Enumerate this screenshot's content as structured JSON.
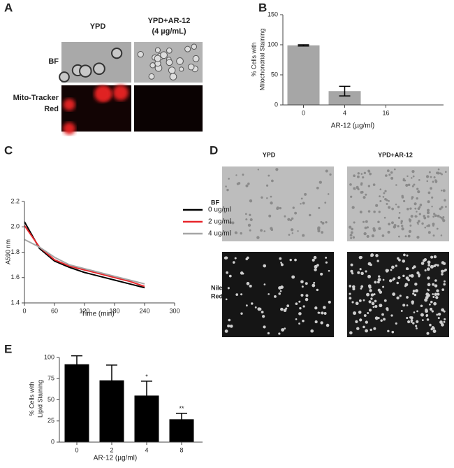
{
  "panel_labels": [
    "A",
    "B",
    "C",
    "D",
    "E"
  ],
  "images": {
    "A": {
      "columns": [
        [
          "YPD"
        ],
        [
          "YPD+AR-12",
          "(4 µg/mL)"
        ]
      ],
      "rows": [
        [
          "BF"
        ],
        [
          "Mito-Tracker",
          "Red"
        ]
      ]
    },
    "D": {
      "columns": [
        [
          "YPD"
        ],
        [
          "YPD+AR-12"
        ]
      ],
      "rows": [
        [
          "BF"
        ],
        [
          "Nile",
          "Red"
        ]
      ]
    }
  },
  "chart_data": [
    {
      "type": "bar",
      "ylabel": [
        "% Cells with",
        "Mitochondrial Staining"
      ],
      "xlabel": "AR-12 (µg/ml)",
      "categories": [
        "0",
        "4",
        "16"
      ],
      "values": [
        99,
        23,
        0
      ],
      "errors": [
        1,
        8,
        null
      ],
      "color": "#a6a6a6",
      "ylim": [
        0,
        150
      ],
      "yticks": [
        0,
        50,
        100,
        150
      ]
    },
    {
      "type": "line",
      "ylabel": "A590 nm",
      "xlabel": "Time (min)",
      "x": [
        0,
        30,
        60,
        90,
        120,
        150,
        180,
        210,
        240
      ],
      "series": [
        {
          "name": "0 ug/ml",
          "color": "#000000",
          "values": [
            2.04,
            1.83,
            1.73,
            1.68,
            1.64,
            1.61,
            1.58,
            1.55,
            1.52
          ]
        },
        {
          "name": "2 ug/ml",
          "color": "#e8262b",
          "values": [
            2.01,
            1.84,
            1.74,
            1.69,
            1.66,
            1.63,
            1.6,
            1.57,
            1.53
          ]
        },
        {
          "name": "4 ug/ml",
          "color": "#a6a6a6",
          "values": [
            1.9,
            1.84,
            1.76,
            1.7,
            1.67,
            1.64,
            1.61,
            1.58,
            1.55
          ]
        }
      ],
      "xlim": [
        0,
        300
      ],
      "xticks": [
        0,
        60,
        120,
        180,
        240,
        300
      ],
      "ylim": [
        1.4,
        2.2
      ],
      "yticks": [
        1.4,
        1.6,
        1.8,
        {
          "value": 2,
          "label": "2.0"
        },
        2.2
      ]
    },
    {
      "type": "bar",
      "ylabel": [
        "% Cells with",
        "Lipid Staining"
      ],
      "xlabel": "AR-12 (µg/ml)",
      "categories": [
        "0",
        "2",
        "4",
        "8"
      ],
      "values": [
        92,
        73,
        55,
        27
      ],
      "errors": [
        10,
        18,
        17,
        7
      ],
      "annotations": [
        null,
        null,
        "*",
        "**"
      ],
      "color": "#000000",
      "ylim": [
        0,
        100
      ],
      "yticks": [
        0,
        25,
        50,
        75,
        100
      ]
    }
  ]
}
